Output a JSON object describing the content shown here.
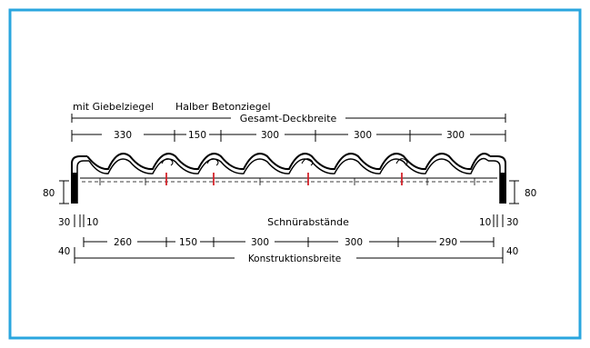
{
  "colors": {
    "frame": "#2aa6df",
    "line": "#000000",
    "accent": "#d3232a"
  },
  "labels": {
    "mit_giebelziegel": "mit Giebelziegel",
    "halber_betonziegel": "Halber Betonziegel",
    "gesamt_deckbreite": "Gesamt-Deckbreite",
    "schnurabstaende": "Schnürabstände",
    "konstruktionsbreite": "Konstruktionsbreite"
  },
  "top_dims": [
    "330",
    "150",
    "300",
    "300",
    "300"
  ],
  "bottom_dims": [
    "260",
    "150",
    "300",
    "300",
    "290"
  ],
  "side": {
    "left_height": "80",
    "right_height": "80",
    "left_30": "30",
    "left_10": "10",
    "right_10": "10",
    "right_30": "30",
    "left_40": "40",
    "right_40": "40"
  }
}
